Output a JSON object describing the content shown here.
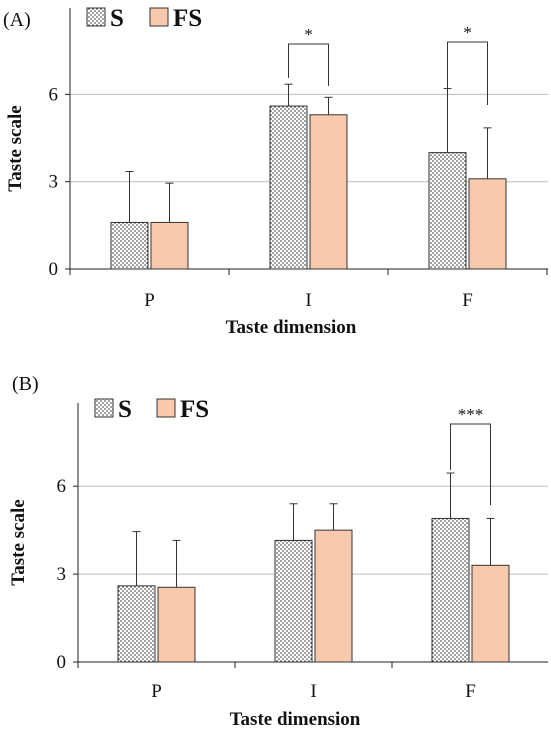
{
  "chart_data": [
    {
      "panel_label": "(A)",
      "type": "bar",
      "categories": [
        "P",
        "I",
        "F"
      ],
      "series": [
        {
          "name": "S",
          "values": [
            1.6,
            5.6,
            4.0
          ],
          "errors": [
            1.75,
            0.75,
            2.2
          ],
          "color": "#ffffff",
          "pattern": "dotted"
        },
        {
          "name": "FS",
          "values": [
            1.6,
            5.3,
            3.1
          ],
          "errors": [
            1.35,
            0.6,
            1.75
          ],
          "color": "#f8c9ad",
          "pattern": "solid"
        }
      ],
      "significance": [
        {
          "category": "F",
          "label": "*"
        },
        {
          "category": "I",
          "label": "*"
        }
      ],
      "xlabel": "Taste dimension",
      "ylabel": "Taste scale",
      "ylim": [
        0,
        8.5
      ],
      "yticks": [
        0,
        3,
        6
      ],
      "grid": true,
      "legend_position": "top-left"
    },
    {
      "panel_label": "(B)",
      "type": "bar",
      "categories": [
        "P",
        "I",
        "F"
      ],
      "series": [
        {
          "name": "S",
          "values": [
            2.6,
            4.15,
            4.9
          ],
          "errors": [
            1.85,
            1.25,
            1.55
          ],
          "color": "#ffffff",
          "pattern": "dotted"
        },
        {
          "name": "FS",
          "values": [
            2.55,
            4.5,
            3.3
          ],
          "errors": [
            1.6,
            0.9,
            1.6
          ],
          "color": "#f8c9ad",
          "pattern": "solid"
        }
      ],
      "significance": [
        {
          "category": "F",
          "label": "***"
        }
      ],
      "xlabel": "Taste dimension",
      "ylabel": "Taste scale",
      "ylim": [
        0,
        8.8
      ],
      "yticks": [
        0,
        3,
        6
      ],
      "grid": true,
      "legend_position": "top-left"
    }
  ]
}
